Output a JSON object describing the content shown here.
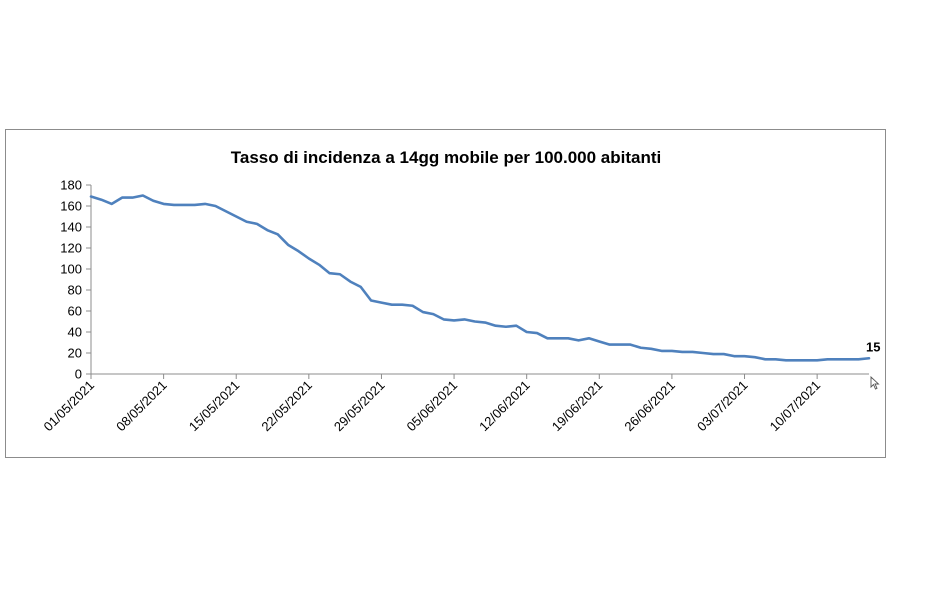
{
  "chart_data": {
    "type": "line",
    "title": "Tasso di incidenza a 14gg mobile per 100.000 abitanti",
    "xlabel": "",
    "ylabel": "",
    "ylim": [
      0,
      180
    ],
    "y_ticks": [
      0,
      20,
      40,
      60,
      80,
      100,
      120,
      140,
      160,
      180
    ],
    "x_tick_labels": [
      "01/05/2021",
      "08/05/2021",
      "15/05/2021",
      "22/05/2021",
      "29/05/2021",
      "05/06/2021",
      "12/06/2021",
      "19/06/2021",
      "26/06/2021",
      "03/07/2021",
      "10/07/2021"
    ],
    "grid": false,
    "legend": "none",
    "line_color": "#4f81bd",
    "x": [
      "01/05/2021",
      "02/05/2021",
      "03/05/2021",
      "04/05/2021",
      "05/05/2021",
      "06/05/2021",
      "07/05/2021",
      "08/05/2021",
      "09/05/2021",
      "10/05/2021",
      "11/05/2021",
      "12/05/2021",
      "13/05/2021",
      "14/05/2021",
      "15/05/2021",
      "16/05/2021",
      "17/05/2021",
      "18/05/2021",
      "19/05/2021",
      "20/05/2021",
      "21/05/2021",
      "22/05/2021",
      "23/05/2021",
      "24/05/2021",
      "25/05/2021",
      "26/05/2021",
      "27/05/2021",
      "28/05/2021",
      "29/05/2021",
      "30/05/2021",
      "31/05/2021",
      "01/06/2021",
      "02/06/2021",
      "03/06/2021",
      "04/06/2021",
      "05/06/2021",
      "06/06/2021",
      "07/06/2021",
      "08/06/2021",
      "09/06/2021",
      "10/06/2021",
      "11/06/2021",
      "12/06/2021",
      "13/06/2021",
      "14/06/2021",
      "15/06/2021",
      "16/06/2021",
      "17/06/2021",
      "18/06/2021",
      "19/06/2021",
      "20/06/2021",
      "21/06/2021",
      "22/06/2021",
      "23/06/2021",
      "24/06/2021",
      "25/06/2021",
      "26/06/2021",
      "27/06/2021",
      "28/06/2021",
      "29/06/2021",
      "30/06/2021",
      "01/07/2021",
      "02/07/2021",
      "03/07/2021",
      "04/07/2021",
      "05/07/2021",
      "06/07/2021",
      "07/07/2021",
      "08/07/2021",
      "09/07/2021",
      "10/07/2021",
      "11/07/2021",
      "12/07/2021",
      "13/07/2021",
      "14/07/2021",
      "15/07/2021"
    ],
    "series": [
      {
        "values": [
          169,
          166,
          162,
          168,
          168,
          170,
          165,
          162,
          161,
          161,
          161,
          162,
          160,
          155,
          150,
          145,
          143,
          137,
          133,
          123,
          117,
          110,
          104,
          96,
          95,
          88,
          83,
          70,
          68,
          66,
          66,
          65,
          59,
          57,
          52,
          51,
          52,
          50,
          49,
          46,
          45,
          46,
          40,
          39,
          34,
          34,
          34,
          32,
          34,
          31,
          28,
          28,
          28,
          25,
          24,
          22,
          22,
          21,
          21,
          20,
          19,
          19,
          17,
          17,
          16,
          14,
          14,
          13,
          13,
          13,
          13,
          14,
          14,
          14,
          14,
          15
        ]
      }
    ],
    "last_value_label": "15"
  }
}
